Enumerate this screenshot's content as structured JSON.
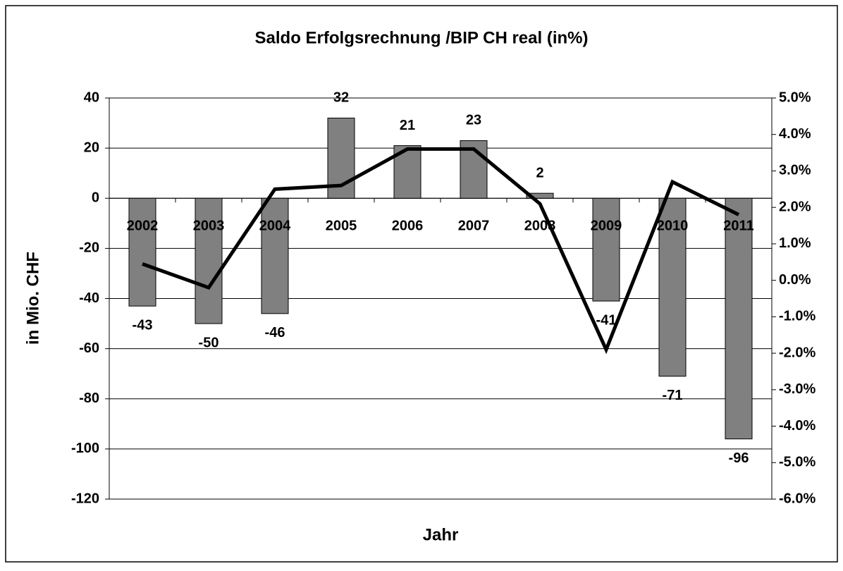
{
  "chart_data": {
    "type": "bar-line",
    "title": "Saldo Erfolgsrechnung /BIP CH real (in%)",
    "y_label": "in Mio. CHF",
    "x_label": "Jahr",
    "categories": [
      "2002",
      "2003",
      "2004",
      "2005",
      "2006",
      "2007",
      "2008",
      "2009",
      "2010",
      "2011"
    ],
    "series": [
      {
        "color": "#808080",
        "values": [
          -43,
          -50,
          -46,
          32,
          21,
          23,
          2,
          -41,
          -71,
          -96
        ]
      },
      {
        "color": "#000000",
        "axis": "y2",
        "values": [
          0.45,
          -0.2,
          2.5,
          2.6,
          3.6,
          3.6,
          2.1,
          -1.9,
          2.7,
          1.8
        ]
      }
    ],
    "ylim": [
      -120,
      40
    ],
    "yticks": [
      -120,
      -100,
      -80,
      -60,
      -40,
      -20,
      0,
      20,
      40
    ],
    "y2lim": [
      -6,
      5
    ],
    "y2ticks": [
      {
        "value": -6,
        "label": "-6.0%"
      },
      {
        "value": -5,
        "label": "-5.0%"
      },
      {
        "value": -4,
        "label": "-4.0%"
      },
      {
        "value": -3,
        "label": "-3.0%"
      },
      {
        "value": -2,
        "label": "-2.0%"
      },
      {
        "value": -1,
        "label": "-1.0%"
      },
      {
        "value": 0,
        "label": "0.0%"
      },
      {
        "value": 1,
        "label": "1.0%"
      },
      {
        "value": 2,
        "label": "2.0%"
      },
      {
        "value": 3,
        "label": "3.0%"
      },
      {
        "value": 4,
        "label": "4.0%"
      },
      {
        "value": 5,
        "label": "5.0%"
      }
    ],
    "grid": true
  }
}
